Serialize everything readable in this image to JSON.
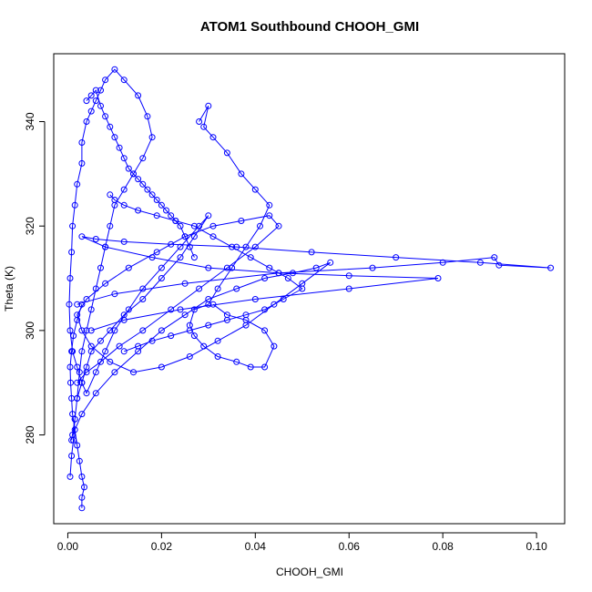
{
  "chart_data": {
    "type": "scatter",
    "title": "ATOM1 Southbound CHOOH_GMI",
    "xlabel": "CHOOH_GMI",
    "ylabel": "Theta (K)",
    "xlim": [
      -0.003,
      0.106
    ],
    "ylim": [
      263,
      353
    ],
    "x_ticks": [
      0.0,
      0.02,
      0.04,
      0.06,
      0.08,
      0.1
    ],
    "x_tick_labels": [
      "0.00",
      "0.02",
      "0.04",
      "0.06",
      "0.08",
      "0.10"
    ],
    "y_ticks": [
      280,
      300,
      320,
      340
    ],
    "y_tick_labels": [
      "280",
      "300",
      "320",
      "340"
    ],
    "grid": false,
    "color": "#0000ff",
    "markers": "open-circle",
    "lines_connecting_points": true,
    "series": [
      {
        "x": [
          0.0005,
          0.0008,
          0.0012,
          0.0015,
          0.002,
          0.0025,
          0.003,
          0.004,
          0.005,
          0.006,
          0.007,
          0.008,
          0.009,
          0.01,
          0.012,
          0.014,
          0.016,
          0.018,
          0.017,
          0.015,
          0.012,
          0.01,
          0.008,
          0.007,
          0.006,
          0.005,
          0.004,
          0.003,
          0.003,
          0.002,
          0.0015,
          0.001,
          0.0008,
          0.0005,
          0.0003,
          0.0005,
          0.001,
          0.002,
          0.003,
          0.004,
          0.006,
          0.008,
          0.01,
          0.013,
          0.016,
          0.02,
          0.024,
          0.028,
          0.03,
          0.027,
          0.024,
          0.02,
          0.016,
          0.012,
          0.009,
          0.007,
          0.005,
          0.004,
          0.003,
          0.002,
          0.0015,
          0.0008
        ],
        "y": [
          272,
          276,
          279,
          283,
          287,
          292,
          296,
          300,
          304,
          308,
          312,
          316,
          320,
          324,
          327,
          330,
          333,
          337,
          341,
          345,
          348,
          350,
          348,
          346,
          344,
          342,
          340,
          336,
          332,
          328,
          324,
          320,
          315,
          310,
          305,
          300,
          296,
          293,
          290,
          288,
          292,
          296,
          300,
          304,
          308,
          312,
          316,
          320,
          322,
          318,
          314,
          310,
          306,
          303,
          300,
          298,
          296,
          293,
          290,
          287,
          283,
          279
        ]
      },
      {
        "x": [
          0.001,
          0.003,
          0.006,
          0.01,
          0.015,
          0.02,
          0.025,
          0.03,
          0.036,
          0.042,
          0.048,
          0.053,
          0.056,
          0.05,
          0.044,
          0.038,
          0.032,
          0.026,
          0.02,
          0.014,
          0.009,
          0.005,
          0.003,
          0.002,
          0.004,
          0.008,
          0.013,
          0.019,
          0.025,
          0.031,
          0.037,
          0.043,
          0.045,
          0.04,
          0.034,
          0.028,
          0.022,
          0.016,
          0.011,
          0.007,
          0.004,
          0.002
        ],
        "y": [
          280,
          284,
          288,
          292,
          296,
          300,
          303,
          306,
          308,
          310,
          311,
          312,
          313,
          309,
          305,
          301,
          298,
          295,
          293,
          292,
          294,
          297,
          300,
          303,
          306,
          309,
          312,
          315,
          318,
          320,
          321,
          322,
          320,
          316,
          312,
          308,
          304,
          300,
          297,
          294,
          292,
          290
        ]
      },
      {
        "x": [
          0.002,
          0.01,
          0.025,
          0.045,
          0.065,
          0.08,
          0.091,
          0.092,
          0.103,
          0.088,
          0.07,
          0.052,
          0.036,
          0.022,
          0.012,
          0.006,
          0.003,
          0.008,
          0.018,
          0.03,
          0.045,
          0.06,
          0.079,
          0.06,
          0.04,
          0.024,
          0.012,
          0.005
        ],
        "y": [
          305,
          307,
          309,
          311,
          312,
          313,
          314,
          312.5,
          312,
          313,
          314,
          315,
          316,
          316.5,
          317,
          317.5,
          318,
          316,
          314,
          312,
          311,
          310.5,
          310,
          308,
          306,
          304,
          302,
          300
        ]
      },
      {
        "x": [
          0.028,
          0.03,
          0.029,
          0.031,
          0.034,
          0.037,
          0.04,
          0.043,
          0.041,
          0.038,
          0.035,
          0.032,
          0.03,
          0.027,
          0.026,
          0.027,
          0.029,
          0.032,
          0.036,
          0.039,
          0.042,
          0.044,
          0.042,
          0.038,
          0.034,
          0.031
        ],
        "y": [
          340,
          343,
          339,
          337,
          334,
          330,
          327,
          324,
          320,
          316,
          312,
          308,
          305,
          304,
          301,
          299,
          297,
          295,
          294,
          293,
          293,
          297,
          300,
          302,
          303,
          305
        ]
      },
      {
        "x": [
          0.003,
          0.003,
          0.0035,
          0.003,
          0.0025,
          0.002,
          0.0015,
          0.001,
          0.0008,
          0.0006,
          0.0005,
          0.0008,
          0.0012,
          0.002,
          0.003
        ],
        "y": [
          266,
          268,
          270,
          272,
          275,
          278,
          281,
          284,
          287,
          290,
          293,
          296,
          299,
          302,
          305
        ]
      },
      {
        "x": [
          0.004,
          0.005,
          0.006,
          0.007,
          0.008,
          0.009,
          0.01,
          0.011,
          0.012,
          0.013,
          0.014,
          0.015,
          0.016,
          0.017,
          0.018,
          0.019,
          0.02,
          0.021,
          0.022,
          0.023,
          0.024,
          0.025,
          0.026,
          0.027
        ],
        "y": [
          344,
          345,
          346,
          343,
          341,
          339,
          337,
          335,
          333,
          331,
          330,
          329,
          328,
          327,
          326,
          325,
          324,
          323,
          322,
          321,
          320,
          318,
          316,
          314
        ]
      },
      {
        "x": [
          0.012,
          0.015,
          0.018,
          0.022,
          0.026,
          0.03,
          0.034,
          0.038,
          0.042,
          0.046,
          0.05,
          0.047,
          0.043,
          0.039,
          0.035,
          0.031,
          0.027,
          0.023,
          0.019,
          0.015,
          0.012,
          0.01,
          0.009
        ],
        "y": [
          296,
          297,
          298,
          299,
          300,
          301,
          302,
          303,
          304,
          306,
          308,
          310,
          312,
          314,
          316,
          318,
          320,
          321,
          322,
          323,
          324,
          325,
          326
        ]
      }
    ]
  }
}
